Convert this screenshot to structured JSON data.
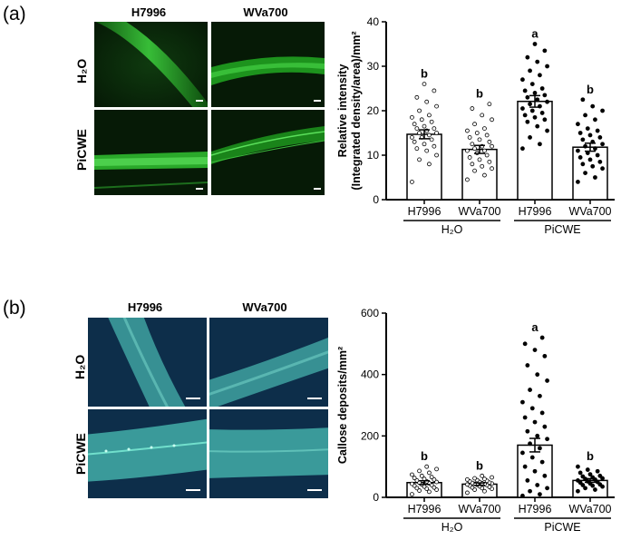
{
  "panels": [
    {
      "label": "(a)",
      "columns": [
        "H7996",
        "WVa700"
      ],
      "rows": [
        "H₂O",
        "PiCWE"
      ],
      "image_color": "#1f8f1f"
    },
    {
      "label": "(b)",
      "columns": [
        "H7996",
        "WVa700"
      ],
      "rows": [
        "H₂O",
        "PiCWE"
      ],
      "image_color": "#3aa9a0"
    }
  ],
  "chart_data": [
    {
      "type": "bar",
      "ylabel_line1": "Relative intensity",
      "ylabel_line2": "(Integrated density/area)/mm²",
      "ylim": [
        0,
        40
      ],
      "yticks": [
        0,
        10,
        20,
        30,
        40
      ],
      "categories": [
        "H7996",
        "WVa700",
        "H7996",
        "WVa700"
      ],
      "groups": [
        {
          "name": "H₂O",
          "span": [
            0,
            1
          ]
        },
        {
          "name": "PiCWE",
          "span": [
            2,
            3
          ]
        }
      ],
      "values": [
        14.7,
        11.3,
        22.1,
        11.8
      ],
      "errors": [
        1.0,
        0.9,
        1.3,
        0.9
      ],
      "significance": [
        "b",
        "b",
        "a",
        "b"
      ],
      "marker_fill": [
        "#ffffff",
        "#ffffff",
        "#000000",
        "#000000"
      ],
      "points": [
        [
          4,
          8,
          9,
          10,
          11,
          11.5,
          12,
          12.5,
          13,
          13.5,
          14,
          14,
          14.5,
          15,
          15,
          15.5,
          16,
          16,
          16.5,
          17,
          17.5,
          18,
          18.5,
          19,
          20,
          21,
          22,
          23,
          24.5,
          26
        ],
        [
          4.5,
          5.5,
          6.5,
          7,
          7.5,
          8,
          8.5,
          9,
          9.5,
          10,
          10.5,
          11,
          11,
          11.5,
          12,
          12,
          12.5,
          13,
          13.5,
          14,
          14.5,
          15,
          15.5,
          16,
          17,
          18,
          19,
          20.5,
          21.5
        ],
        [
          11.5,
          12.5,
          14,
          15.5,
          16.5,
          17.5,
          18,
          18.5,
          19,
          19.5,
          20,
          20.5,
          21,
          21.5,
          22,
          22.5,
          23,
          23.5,
          24,
          24.5,
          25,
          26,
          27,
          28,
          29,
          30,
          31,
          32,
          33.5,
          35
        ],
        [
          4,
          5,
          6,
          7,
          7.5,
          8,
          8.5,
          9,
          9.5,
          10,
          10.5,
          11,
          11.5,
          12,
          12.5,
          13,
          13.5,
          14,
          14.5,
          15,
          15.5,
          16,
          17,
          18,
          19,
          20,
          21,
          22.5
        ]
      ]
    },
    {
      "type": "bar",
      "ylabel_line1": "Callose deposits/mm²",
      "ylabel_line2": "",
      "ylim": [
        0,
        600
      ],
      "yticks": [
        0,
        200,
        400,
        600
      ],
      "categories": [
        "H7996",
        "WVa700",
        "H7996",
        "WVa700"
      ],
      "groups": [
        {
          "name": "H₂O",
          "span": [
            0,
            1
          ]
        },
        {
          "name": "PiCWE",
          "span": [
            2,
            3
          ]
        }
      ],
      "values": [
        48,
        43,
        170,
        55
      ],
      "errors": [
        6,
        4,
        22,
        6
      ],
      "significance": [
        "b",
        "b",
        "a",
        "b"
      ],
      "marker_fill": [
        "#ffffff",
        "#ffffff",
        "#000000",
        "#000000"
      ],
      "points": [
        [
          10,
          18,
          22,
          25,
          28,
          30,
          32,
          35,
          38,
          40,
          42,
          44,
          46,
          48,
          50,
          52,
          55,
          58,
          60,
          63,
          66,
          70,
          74,
          80,
          86,
          92,
          100
        ],
        [
          15,
          20,
          25,
          28,
          30,
          32,
          34,
          36,
          38,
          40,
          41,
          42,
          43,
          44,
          45,
          46,
          47,
          48,
          50,
          52,
          54,
          56,
          58,
          60,
          62,
          65,
          70
        ],
        [
          5,
          10,
          20,
          30,
          40,
          55,
          70,
          85,
          100,
          115,
          130,
          145,
          160,
          175,
          190,
          200,
          215,
          230,
          245,
          260,
          275,
          290,
          310,
          330,
          350,
          380,
          400,
          430,
          460,
          480,
          500,
          520
        ],
        [
          20,
          25,
          30,
          35,
          38,
          40,
          42,
          45,
          48,
          50,
          52,
          55,
          58,
          60,
          62,
          65,
          68,
          70,
          75,
          80,
          85,
          90,
          100
        ]
      ]
    }
  ]
}
